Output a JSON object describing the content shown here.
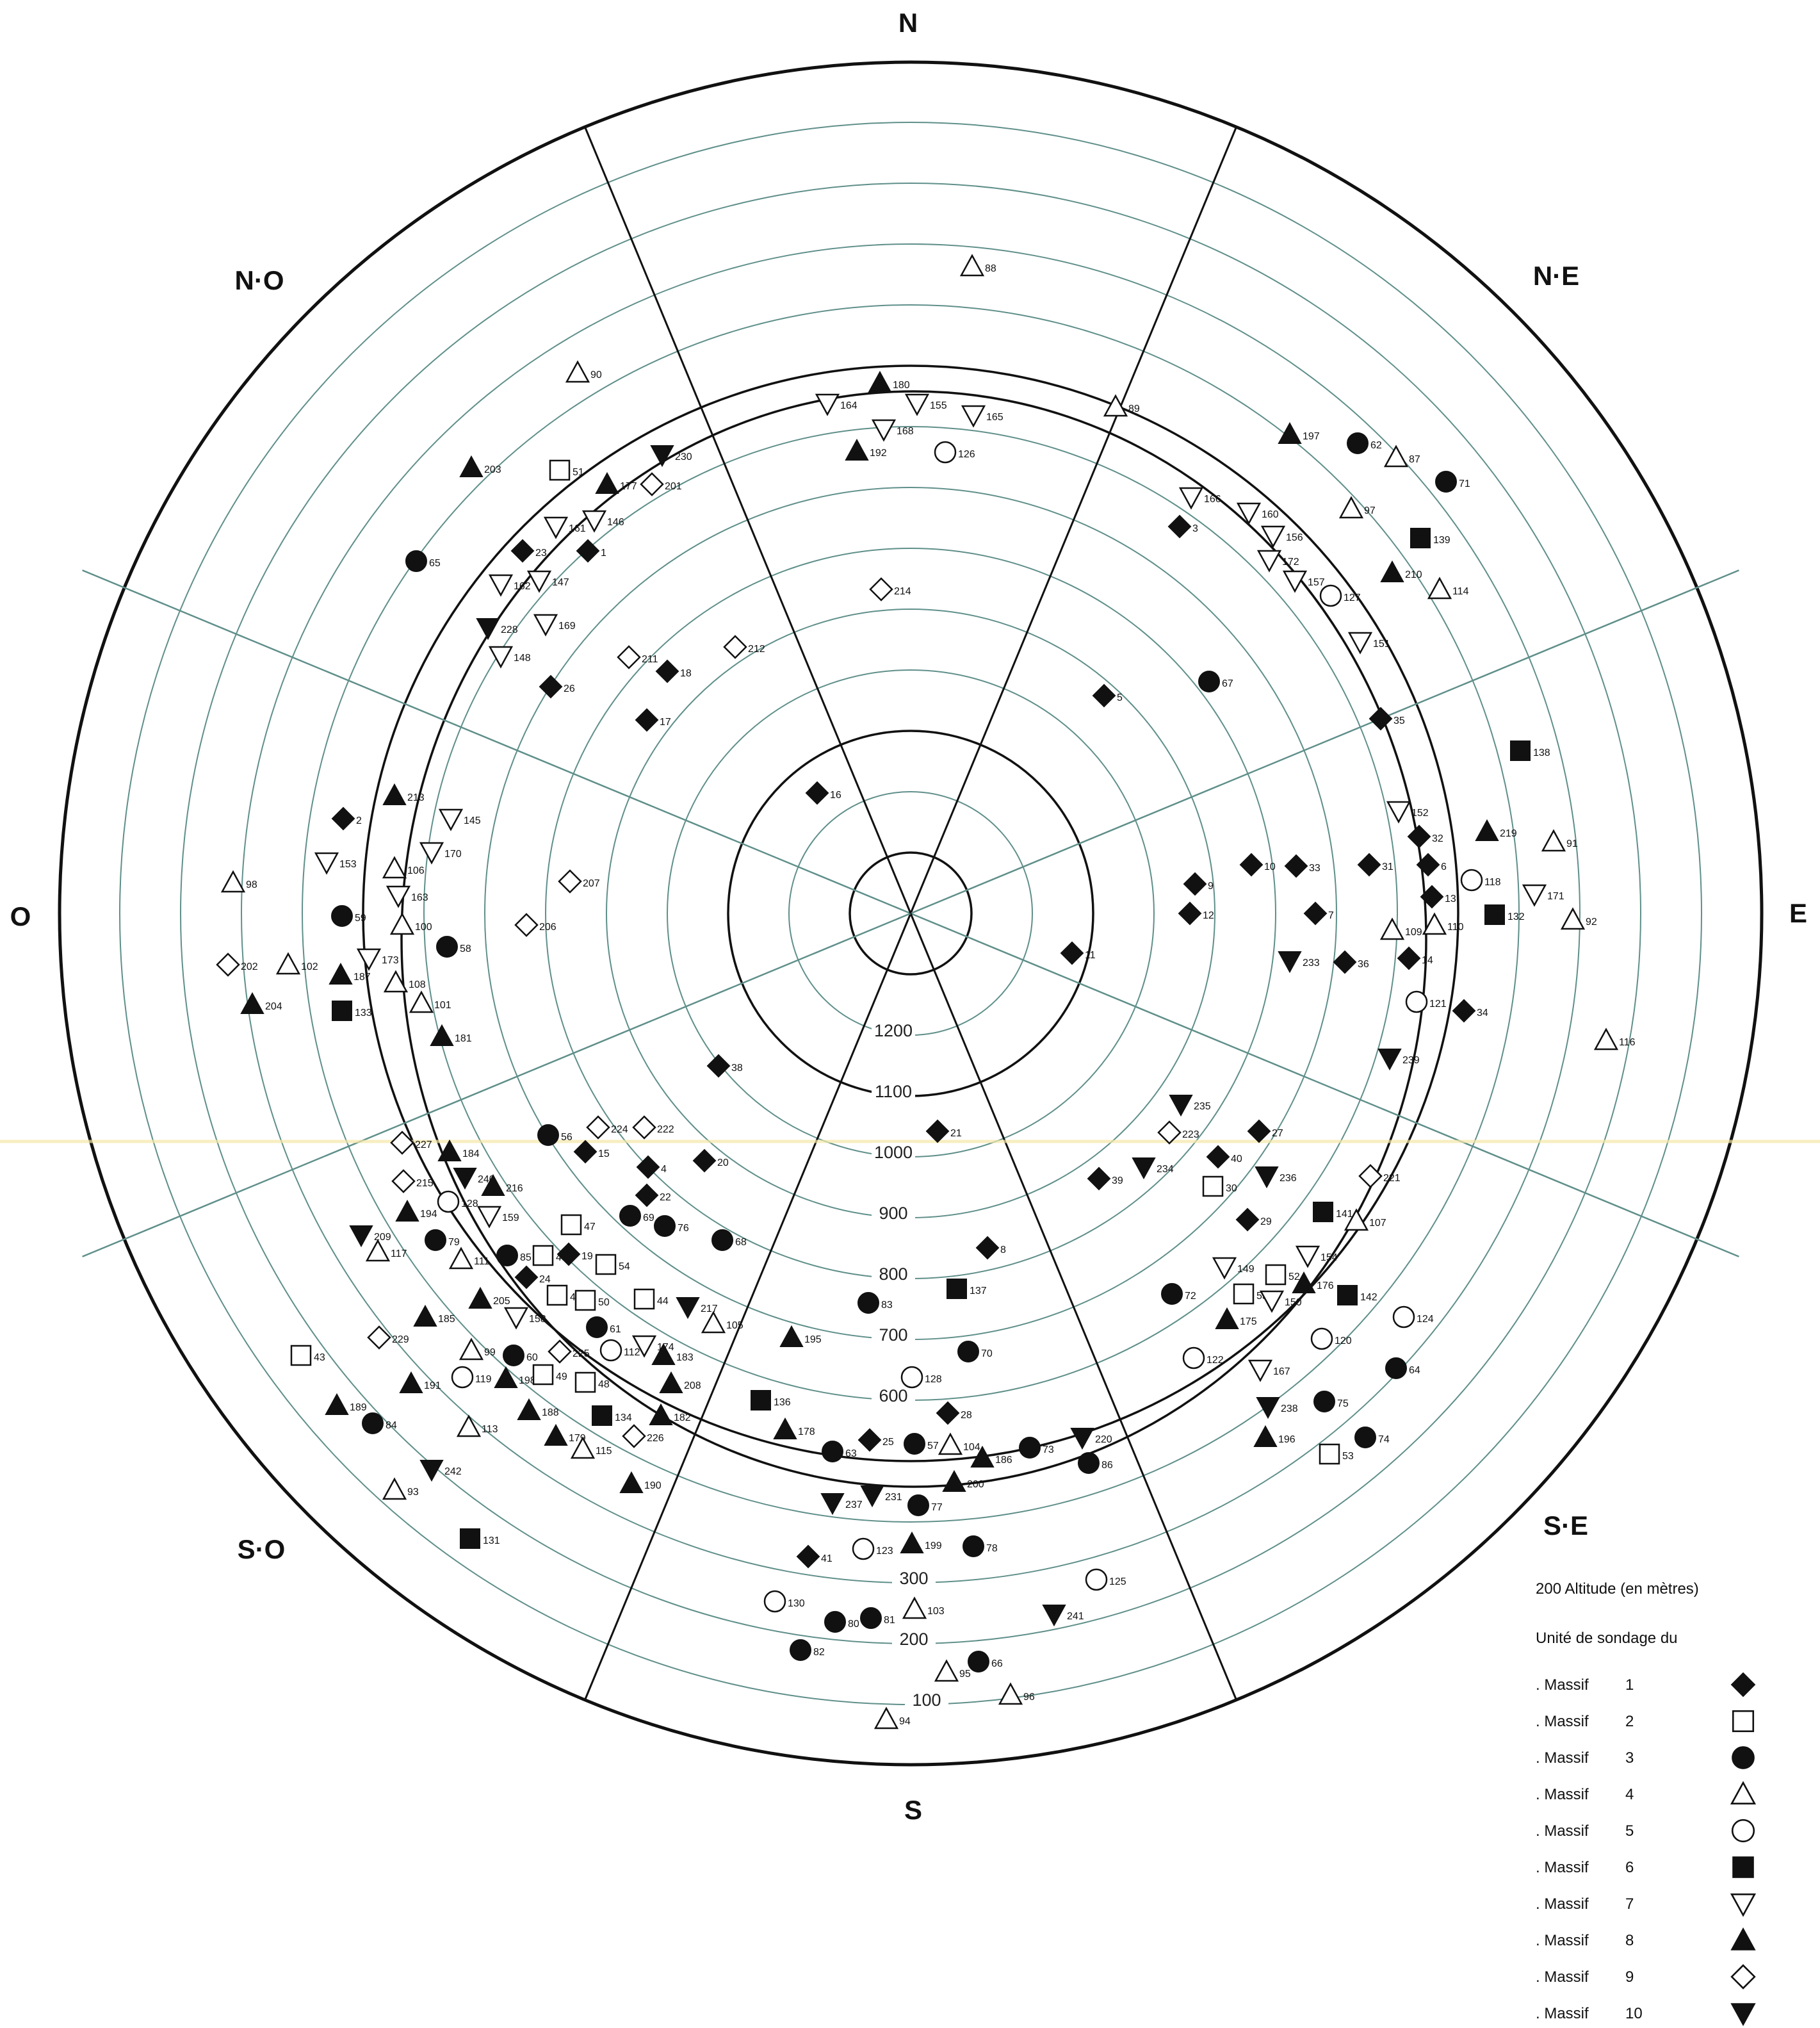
{
  "chart_data": {
    "type": "scatter",
    "coordinate_system": "polar",
    "directions": [
      "N",
      "N·E",
      "E",
      "S·E",
      "S",
      "S·O",
      "O",
      "N·O"
    ],
    "altitude_ring_labels": [
      1200,
      1100,
      1000,
      900,
      800,
      700,
      600,
      300,
      200,
      100
    ],
    "radial_axis": "Altitude (m), decreasing outward",
    "angular_axis": "Orientation",
    "legend": {
      "altitude_note": "200 Altitude (en mètres)",
      "unit_title": "Unité de sondage du",
      "entries": [
        {
          "label": ". Massif",
          "massif": 1,
          "symbol": "diamond-filled-icon"
        },
        {
          "label": ". Massif",
          "massif": 2,
          "symbol": "square-open-icon"
        },
        {
          "label": ". Massif",
          "massif": 3,
          "symbol": "circle-filled-icon"
        },
        {
          "label": ". Massif",
          "massif": 4,
          "symbol": "triangle-up-open-icon"
        },
        {
          "label": ". Massif",
          "massif": 5,
          "symbol": "circle-open-icon"
        },
        {
          "label": ". Massif",
          "massif": 6,
          "symbol": "square-filled-icon"
        },
        {
          "label": ". Massif",
          "massif": 7,
          "symbol": "triangle-down-open-icon"
        },
        {
          "label": ". Massif",
          "massif": 8,
          "symbol": "triangle-up-filled-icon"
        },
        {
          "label": ". Massif",
          "massif": 9,
          "symbol": "diamond-open-icon"
        },
        {
          "label": ". Massif",
          "massif": 10,
          "symbol": "triangle-down-filled-icon"
        }
      ]
    },
    "massif_symbols": {
      "1": "diamond-filled-icon",
      "2": "square-open-icon",
      "3": "circle-filled-icon",
      "4": "triangle-up-open-icon",
      "5": "circle-open-icon",
      "6": "square-filled-icon",
      "7": "triangle-down-open-icon",
      "8": "triangle-up-filled-icon",
      "9": "diamond-open-icon",
      "10": "triangle-down-filled-icon"
    },
    "points": [
      {
        "id": "88",
        "massif": 4
      },
      {
        "id": "89",
        "massif": 4
      },
      {
        "id": "180",
        "massif": 8
      },
      {
        "id": "164",
        "massif": 7
      },
      {
        "id": "155",
        "massif": 7
      },
      {
        "id": "165",
        "massif": 7
      },
      {
        "id": "168",
        "massif": 7
      },
      {
        "id": "192",
        "massif": 8
      },
      {
        "id": "126",
        "massif": 5
      },
      {
        "id": "214",
        "massif": 9
      },
      {
        "id": "197",
        "massif": 8
      },
      {
        "id": "62",
        "massif": 3
      },
      {
        "id": "87",
        "massif": 4
      },
      {
        "id": "71",
        "massif": 3
      },
      {
        "id": "166",
        "massif": 7
      },
      {
        "id": "160",
        "massif": 7
      },
      {
        "id": "97",
        "massif": 4
      },
      {
        "id": "3",
        "massif": 1
      },
      {
        "id": "156",
        "massif": 7
      },
      {
        "id": "139",
        "massif": 6
      },
      {
        "id": "172",
        "massif": 7
      },
      {
        "id": "157",
        "massif": 7
      },
      {
        "id": "127",
        "massif": 5
      },
      {
        "id": "210",
        "massif": 8
      },
      {
        "id": "114",
        "massif": 4
      },
      {
        "id": "151",
        "massif": 7
      },
      {
        "id": "67",
        "massif": 3
      },
      {
        "id": "5",
        "massif": 1
      },
      {
        "id": "35",
        "massif": 1
      },
      {
        "id": "138",
        "massif": 6
      },
      {
        "id": "152",
        "massif": 7
      },
      {
        "id": "219",
        "massif": 8
      },
      {
        "id": "32",
        "massif": 1
      },
      {
        "id": "91",
        "massif": 4
      },
      {
        "id": "6",
        "massif": 1
      },
      {
        "id": "13",
        "massif": 1
      },
      {
        "id": "118",
        "massif": 5
      },
      {
        "id": "171",
        "massif": 7
      },
      {
        "id": "10",
        "massif": 1
      },
      {
        "id": "33",
        "massif": 1
      },
      {
        "id": "31",
        "massif": 1
      },
      {
        "id": "9",
        "massif": 1
      },
      {
        "id": "12",
        "massif": 1
      },
      {
        "id": "7",
        "massif": 1
      },
      {
        "id": "109",
        "massif": 4
      },
      {
        "id": "110",
        "massif": 4
      },
      {
        "id": "132",
        "massif": 6
      },
      {
        "id": "92",
        "massif": 4
      },
      {
        "id": "11",
        "massif": 1
      },
      {
        "id": "233",
        "massif": 10
      },
      {
        "id": "36",
        "massif": 1
      },
      {
        "id": "14",
        "massif": 1
      },
      {
        "id": "121",
        "massif": 5
      },
      {
        "id": "34",
        "massif": 1
      },
      {
        "id": "116",
        "massif": 4
      },
      {
        "id": "239",
        "massif": 10
      },
      {
        "id": "90",
        "massif": 4
      },
      {
        "id": "203",
        "massif": 8
      },
      {
        "id": "51",
        "massif": 2
      },
      {
        "id": "177",
        "massif": 8
      },
      {
        "id": "201",
        "massif": 9
      },
      {
        "id": "230",
        "massif": 10
      },
      {
        "id": "161",
        "massif": 7
      },
      {
        "id": "146",
        "massif": 7
      },
      {
        "id": "65",
        "massif": 3
      },
      {
        "id": "23",
        "massif": 1
      },
      {
        "id": "1",
        "massif": 1
      },
      {
        "id": "162",
        "massif": 7
      },
      {
        "id": "147",
        "massif": 7
      },
      {
        "id": "228",
        "massif": 10
      },
      {
        "id": "169",
        "massif": 7
      },
      {
        "id": "148",
        "massif": 7
      },
      {
        "id": "211",
        "massif": 9
      },
      {
        "id": "18",
        "massif": 1
      },
      {
        "id": "212",
        "massif": 9
      },
      {
        "id": "26",
        "massif": 1
      },
      {
        "id": "17",
        "massif": 1
      },
      {
        "id": "16",
        "massif": 1
      },
      {
        "id": "213",
        "massif": 8
      },
      {
        "id": "2",
        "massif": 1
      },
      {
        "id": "145",
        "massif": 7
      },
      {
        "id": "153",
        "massif": 7
      },
      {
        "id": "106",
        "massif": 4
      },
      {
        "id": "170",
        "massif": 7
      },
      {
        "id": "98",
        "massif": 4
      },
      {
        "id": "163",
        "massif": 7
      },
      {
        "id": "207",
        "massif": 9
      },
      {
        "id": "59",
        "massif": 3
      },
      {
        "id": "100",
        "massif": 4
      },
      {
        "id": "206",
        "massif": 9
      },
      {
        "id": "58",
        "massif": 3
      },
      {
        "id": "202",
        "massif": 9
      },
      {
        "id": "102",
        "massif": 4
      },
      {
        "id": "173",
        "massif": 7
      },
      {
        "id": "187",
        "massif": 8
      },
      {
        "id": "108",
        "massif": 4
      },
      {
        "id": "204",
        "massif": 8
      },
      {
        "id": "101",
        "massif": 4
      },
      {
        "id": "133",
        "massif": 6
      },
      {
        "id": "181",
        "massif": 8
      },
      {
        "id": "38",
        "massif": 1
      },
      {
        "id": "56",
        "massif": 3
      },
      {
        "id": "224",
        "massif": 9
      },
      {
        "id": "222",
        "massif": 9
      },
      {
        "id": "15",
        "massif": 1
      },
      {
        "id": "227",
        "massif": 9
      },
      {
        "id": "184",
        "massif": 8
      },
      {
        "id": "20",
        "massif": 1
      },
      {
        "id": "4",
        "massif": 1
      },
      {
        "id": "21",
        "massif": 1
      },
      {
        "id": "215",
        "massif": 9
      },
      {
        "id": "240",
        "massif": 10
      },
      {
        "id": "216",
        "massif": 8
      },
      {
        "id": "22",
        "massif": 1
      },
      {
        "id": "128",
        "massif": 5
      },
      {
        "id": "194",
        "massif": 8
      },
      {
        "id": "159",
        "massif": 7
      },
      {
        "id": "69",
        "massif": 3
      },
      {
        "id": "47",
        "massif": 2
      },
      {
        "id": "76",
        "massif": 3
      },
      {
        "id": "209",
        "massif": 10
      },
      {
        "id": "117",
        "massif": 4
      },
      {
        "id": "79",
        "massif": 3
      },
      {
        "id": "68",
        "massif": 3
      },
      {
        "id": "111",
        "massif": 4
      },
      {
        "id": "85",
        "massif": 3
      },
      {
        "id": "45",
        "massif": 2
      },
      {
        "id": "19",
        "massif": 1
      },
      {
        "id": "54",
        "massif": 2
      },
      {
        "id": "8",
        "massif": 1
      },
      {
        "id": "24",
        "massif": 1
      },
      {
        "id": "205",
        "massif": 8
      },
      {
        "id": "46",
        "massif": 2
      },
      {
        "id": "50",
        "massif": 2
      },
      {
        "id": "44",
        "massif": 2
      },
      {
        "id": "137",
        "massif": 6
      },
      {
        "id": "83",
        "massif": 3
      },
      {
        "id": "217",
        "massif": 10
      },
      {
        "id": "185",
        "massif": 8
      },
      {
        "id": "158",
        "massif": 7
      },
      {
        "id": "61",
        "massif": 3
      },
      {
        "id": "105",
        "massif": 4
      },
      {
        "id": "43",
        "massif": 2
      },
      {
        "id": "229",
        "massif": 9
      },
      {
        "id": "99",
        "massif": 4
      },
      {
        "id": "60",
        "massif": 3
      },
      {
        "id": "225",
        "massif": 9
      },
      {
        "id": "112",
        "massif": 5
      },
      {
        "id": "174",
        "massif": 7
      },
      {
        "id": "183",
        "massif": 8
      },
      {
        "id": "195",
        "massif": 8
      },
      {
        "id": "70",
        "massif": 3
      },
      {
        "id": "119",
        "massif": 5
      },
      {
        "id": "198",
        "massif": 8
      },
      {
        "id": "49",
        "massif": 2
      },
      {
        "id": "48",
        "massif": 2
      },
      {
        "id": "208",
        "massif": 8
      },
      {
        "id": "191",
        "massif": 8
      },
      {
        "id": "128b",
        "label": "128",
        "massif": 5
      },
      {
        "id": "136",
        "massif": 6
      },
      {
        "id": "28",
        "massif": 1
      },
      {
        "id": "189",
        "massif": 8
      },
      {
        "id": "84",
        "massif": 3
      },
      {
        "id": "188",
        "massif": 8
      },
      {
        "id": "134",
        "massif": 6
      },
      {
        "id": "182",
        "massif": 8
      },
      {
        "id": "113",
        "massif": 4
      },
      {
        "id": "179",
        "massif": 8
      },
      {
        "id": "226",
        "massif": 9
      },
      {
        "id": "115",
        "massif": 4
      },
      {
        "id": "178",
        "massif": 8
      },
      {
        "id": "25",
        "massif": 1
      },
      {
        "id": "57",
        "massif": 3
      },
      {
        "id": "104",
        "massif": 4
      },
      {
        "id": "63",
        "massif": 3
      },
      {
        "id": "73",
        "massif": 3
      },
      {
        "id": "186",
        "massif": 8
      },
      {
        "id": "220",
        "massif": 10
      },
      {
        "id": "242",
        "massif": 10
      },
      {
        "id": "190",
        "massif": 8
      },
      {
        "id": "86",
        "massif": 3
      },
      {
        "id": "200",
        "massif": 8
      },
      {
        "id": "93",
        "massif": 4
      },
      {
        "id": "237",
        "massif": 10
      },
      {
        "id": "231",
        "massif": 10
      },
      {
        "id": "77",
        "massif": 3
      },
      {
        "id": "131",
        "massif": 6
      },
      {
        "id": "41",
        "massif": 1
      },
      {
        "id": "123",
        "massif": 5
      },
      {
        "id": "199",
        "massif": 8
      },
      {
        "id": "78",
        "massif": 3
      },
      {
        "id": "125",
        "massif": 5
      },
      {
        "id": "130",
        "massif": 5
      },
      {
        "id": "103",
        "massif": 4
      },
      {
        "id": "80",
        "massif": 3
      },
      {
        "id": "81",
        "massif": 3
      },
      {
        "id": "241",
        "massif": 10
      },
      {
        "id": "82",
        "massif": 3
      },
      {
        "id": "66",
        "massif": 3
      },
      {
        "id": "95",
        "massif": 4
      },
      {
        "id": "96",
        "massif": 4
      },
      {
        "id": "94",
        "massif": 4
      },
      {
        "id": "235",
        "massif": 10
      },
      {
        "id": "223",
        "massif": 9
      },
      {
        "id": "27",
        "massif": 1
      },
      {
        "id": "40",
        "massif": 1
      },
      {
        "id": "39",
        "massif": 1
      },
      {
        "id": "234",
        "massif": 10
      },
      {
        "id": "30",
        "massif": 2
      },
      {
        "id": "236",
        "massif": 10
      },
      {
        "id": "221",
        "massif": 9
      },
      {
        "id": "29",
        "massif": 1
      },
      {
        "id": "141",
        "massif": 6
      },
      {
        "id": "107",
        "massif": 4
      },
      {
        "id": "154",
        "massif": 7
      },
      {
        "id": "149",
        "massif": 7
      },
      {
        "id": "52",
        "massif": 2
      },
      {
        "id": "72",
        "massif": 3
      },
      {
        "id": "55",
        "massif": 2
      },
      {
        "id": "150",
        "massif": 7
      },
      {
        "id": "176",
        "massif": 8
      },
      {
        "id": "142",
        "massif": 6
      },
      {
        "id": "175",
        "massif": 8
      },
      {
        "id": "124",
        "massif": 5
      },
      {
        "id": "120",
        "massif": 5
      },
      {
        "id": "122",
        "massif": 5
      },
      {
        "id": "64",
        "massif": 3
      },
      {
        "id": "167",
        "massif": 7
      },
      {
        "id": "238",
        "massif": 10
      },
      {
        "id": "75",
        "massif": 3
      },
      {
        "id": "196",
        "massif": 8
      },
      {
        "id": "74",
        "massif": 3
      },
      {
        "id": "53",
        "massif": 2
      }
    ]
  }
}
